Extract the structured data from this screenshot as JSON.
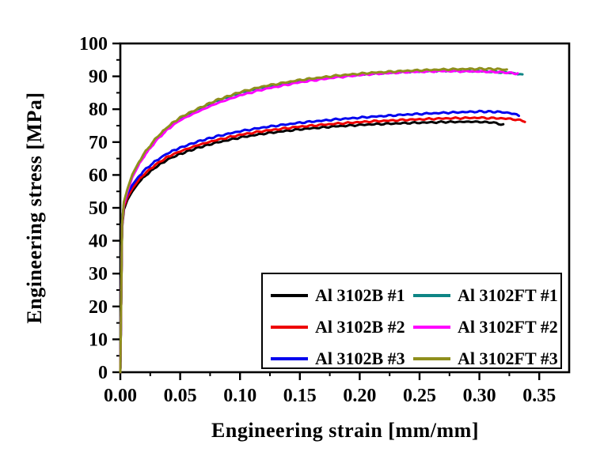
{
  "chart_data": {
    "type": "line",
    "title": "",
    "xlabel": "Engineering strain [mm/mm]",
    "ylabel": "Engineering stress [MPa]",
    "xlim": [
      0,
      0.375
    ],
    "ylim": [
      0,
      100
    ],
    "grid": false,
    "x_ticks": [
      0.0,
      0.05,
      0.1,
      0.15,
      0.2,
      0.25,
      0.3,
      0.35
    ],
    "x_tick_labels": [
      "0.00",
      "0.05",
      "0.10",
      "0.15",
      "0.20",
      "0.25",
      "0.30",
      "0.35"
    ],
    "x_minor_ticks": [
      0.025,
      0.075,
      0.125,
      0.175,
      0.225,
      0.275,
      0.325
    ],
    "y_ticks": [
      0,
      10,
      20,
      30,
      40,
      50,
      60,
      70,
      80,
      90,
      100
    ],
    "y_tick_labels": [
      "0",
      "10",
      "20",
      "30",
      "40",
      "50",
      "60",
      "70",
      "80",
      "90",
      "100"
    ],
    "y_minor_ticks": [
      5,
      15,
      25,
      35,
      45,
      55,
      65,
      75,
      85,
      95
    ],
    "style": {
      "frame_color": "#000000",
      "background": "#ffffff",
      "line_width": 3,
      "tick_direction": "out",
      "jitter_mpa": 0.25
    },
    "series": [
      {
        "name": "Al 3102B #1",
        "color": "#000000",
        "points": [
          [
            0,
            0
          ],
          [
            0.0015,
            44
          ],
          [
            0.003,
            49.5
          ],
          [
            0.006,
            52.5
          ],
          [
            0.01,
            55
          ],
          [
            0.015,
            57.5
          ],
          [
            0.02,
            59.5
          ],
          [
            0.03,
            62.5
          ],
          [
            0.04,
            64.8
          ],
          [
            0.05,
            66.4
          ],
          [
            0.065,
            68.3
          ],
          [
            0.08,
            69.8
          ],
          [
            0.1,
            71.4
          ],
          [
            0.12,
            72.6
          ],
          [
            0.15,
            73.9
          ],
          [
            0.18,
            74.8
          ],
          [
            0.21,
            75.4
          ],
          [
            0.24,
            75.8
          ],
          [
            0.27,
            76.1
          ],
          [
            0.295,
            76.2
          ],
          [
            0.31,
            76.0
          ],
          [
            0.32,
            75.3
          ]
        ]
      },
      {
        "name": "Al 3102B #2",
        "color": "#ee0000",
        "points": [
          [
            0,
            0
          ],
          [
            0.0015,
            44.8
          ],
          [
            0.003,
            50.3
          ],
          [
            0.006,
            53.3
          ],
          [
            0.01,
            55.8
          ],
          [
            0.015,
            58.3
          ],
          [
            0.02,
            60.3
          ],
          [
            0.03,
            63.3
          ],
          [
            0.04,
            65.6
          ],
          [
            0.05,
            67.2
          ],
          [
            0.065,
            69.1
          ],
          [
            0.08,
            70.6
          ],
          [
            0.1,
            72.2
          ],
          [
            0.12,
            73.4
          ],
          [
            0.15,
            74.7
          ],
          [
            0.18,
            75.6
          ],
          [
            0.21,
            76.3
          ],
          [
            0.24,
            76.8
          ],
          [
            0.27,
            77.2
          ],
          [
            0.3,
            77.4
          ],
          [
            0.32,
            77.2
          ],
          [
            0.33,
            76.9
          ],
          [
            0.338,
            76.3
          ]
        ]
      },
      {
        "name": "Al 3102B #3",
        "color": "#0000ee",
        "points": [
          [
            0,
            0
          ],
          [
            0.0015,
            45.6
          ],
          [
            0.003,
            51.2
          ],
          [
            0.006,
            54.3
          ],
          [
            0.01,
            56.9
          ],
          [
            0.015,
            59.4
          ],
          [
            0.02,
            61.4
          ],
          [
            0.03,
            64.4
          ],
          [
            0.04,
            66.7
          ],
          [
            0.05,
            68.3
          ],
          [
            0.065,
            70.2
          ],
          [
            0.08,
            71.7
          ],
          [
            0.1,
            73.3
          ],
          [
            0.12,
            74.5
          ],
          [
            0.15,
            75.9
          ],
          [
            0.18,
            76.9
          ],
          [
            0.21,
            77.7
          ],
          [
            0.24,
            78.4
          ],
          [
            0.27,
            78.9
          ],
          [
            0.3,
            79.3
          ],
          [
            0.315,
            79.2
          ],
          [
            0.325,
            78.9
          ],
          [
            0.333,
            78.1
          ]
        ]
      },
      {
        "name": "Al 3102FT #1",
        "color": "#0e8585",
        "points": [
          [
            0,
            0
          ],
          [
            0.0015,
            45
          ],
          [
            0.003,
            51.5
          ],
          [
            0.006,
            55.5
          ],
          [
            0.01,
            59.8
          ],
          [
            0.015,
            63.3
          ],
          [
            0.02,
            66.3
          ],
          [
            0.03,
            71.0
          ],
          [
            0.04,
            74.5
          ],
          [
            0.05,
            77.2
          ],
          [
            0.065,
            79.9
          ],
          [
            0.08,
            82.4
          ],
          [
            0.1,
            84.9
          ],
          [
            0.12,
            86.7
          ],
          [
            0.15,
            88.6
          ],
          [
            0.18,
            89.9
          ],
          [
            0.21,
            90.8
          ],
          [
            0.24,
            91.4
          ],
          [
            0.27,
            91.7
          ],
          [
            0.3,
            91.6
          ],
          [
            0.32,
            91.2
          ],
          [
            0.33,
            90.9
          ],
          [
            0.336,
            90.4
          ]
        ]
      },
      {
        "name": "Al 3102FT #2",
        "color": "#ff00ff",
        "points": [
          [
            0,
            0
          ],
          [
            0.0015,
            44.6
          ],
          [
            0.003,
            51.0
          ],
          [
            0.006,
            55.0
          ],
          [
            0.01,
            59.3
          ],
          [
            0.015,
            62.8
          ],
          [
            0.02,
            65.8
          ],
          [
            0.03,
            70.5
          ],
          [
            0.04,
            74.0
          ],
          [
            0.05,
            76.7
          ],
          [
            0.065,
            79.3
          ],
          [
            0.08,
            81.7
          ],
          [
            0.1,
            84.2
          ],
          [
            0.12,
            86.1
          ],
          [
            0.15,
            88.2
          ],
          [
            0.18,
            89.7
          ],
          [
            0.21,
            90.7
          ],
          [
            0.24,
            91.3
          ],
          [
            0.27,
            91.6
          ],
          [
            0.3,
            91.5
          ],
          [
            0.315,
            91.3
          ],
          [
            0.325,
            91.1
          ],
          [
            0.332,
            90.8
          ]
        ]
      },
      {
        "name": "Al 3102FT #3",
        "color": "#8f8f1d",
        "points": [
          [
            0,
            0
          ],
          [
            0.0015,
            45.2
          ],
          [
            0.003,
            51.8
          ],
          [
            0.006,
            55.8
          ],
          [
            0.01,
            60.1
          ],
          [
            0.015,
            63.6
          ],
          [
            0.02,
            66.6
          ],
          [
            0.03,
            71.3
          ],
          [
            0.04,
            74.8
          ],
          [
            0.05,
            77.5
          ],
          [
            0.065,
            80.2
          ],
          [
            0.08,
            82.7
          ],
          [
            0.1,
            85.2
          ],
          [
            0.12,
            87.0
          ],
          [
            0.15,
            88.9
          ],
          [
            0.18,
            90.2
          ],
          [
            0.21,
            91.1
          ],
          [
            0.24,
            91.7
          ],
          [
            0.27,
            92.1
          ],
          [
            0.3,
            92.3
          ],
          [
            0.315,
            92.2
          ],
          [
            0.323,
            92.0
          ]
        ]
      }
    ],
    "draw_order": [
      "Al 3102B #1",
      "Al 3102B #2",
      "Al 3102B #3",
      "Al 3102FT #1",
      "Al 3102FT #2",
      "Al 3102FT #3"
    ],
    "legend": {
      "position": "inside-bottom-right",
      "columns": 2,
      "entries": [
        {
          "label": "Al 3102B #1",
          "color": "#000000"
        },
        {
          "label": "Al 3102B #2",
          "color": "#ee0000"
        },
        {
          "label": "Al 3102B #3",
          "color": "#0000ee"
        },
        {
          "label": "Al 3102FT #1",
          "color": "#0e8585"
        },
        {
          "label": "Al 3102FT #2",
          "color": "#ff00ff"
        },
        {
          "label": "Al 3102FT #3",
          "color": "#8f8f1d"
        }
      ]
    }
  }
}
